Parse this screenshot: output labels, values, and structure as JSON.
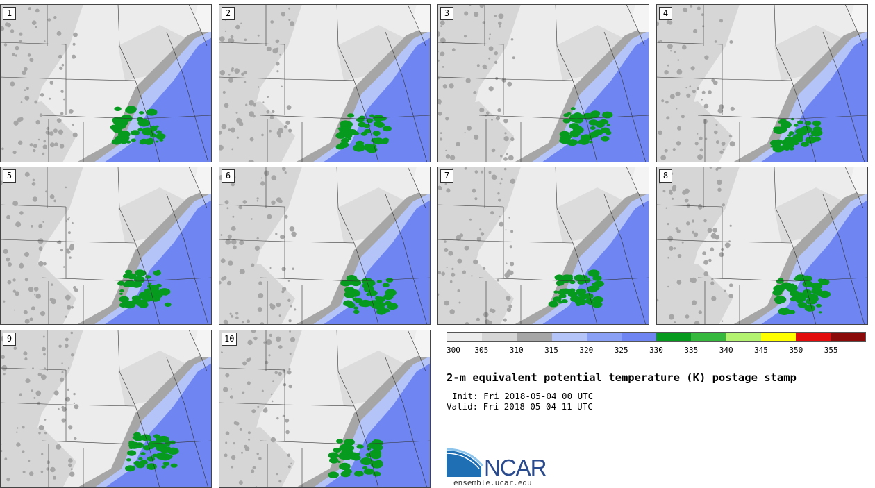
{
  "stamps": [
    {
      "label": "1"
    },
    {
      "label": "2"
    },
    {
      "label": "3"
    },
    {
      "label": "4"
    },
    {
      "label": "5"
    },
    {
      "label": "6"
    },
    {
      "label": "7"
    },
    {
      "label": "8"
    },
    {
      "label": "9"
    },
    {
      "label": "10"
    }
  ],
  "colorbar": {
    "tick_labels": [
      "300",
      "305",
      "310",
      "315",
      "320",
      "325",
      "330",
      "335",
      "340",
      "345",
      "350",
      "355"
    ],
    "colors": [
      "#ececec",
      "#d6d6d6",
      "#a6a6a6",
      "#b4c4f8",
      "#8aa0f4",
      "#6f86f2",
      "#069a1e",
      "#35b83d",
      "#b3f171",
      "#ffff00",
      "#e30c0c",
      "#8a0a0a"
    ]
  },
  "title": "2-m equivalent potential temperature (K) postage stamp",
  "init_line": "Init: Fri 2018-05-04 00 UTC",
  "valid_line": "Valid: Fri 2018-05-04 11 UTC",
  "logo": {
    "text": "NCAR",
    "url": "ensemble.ucar.edu",
    "icon": "ncar-swoosh-icon"
  }
}
